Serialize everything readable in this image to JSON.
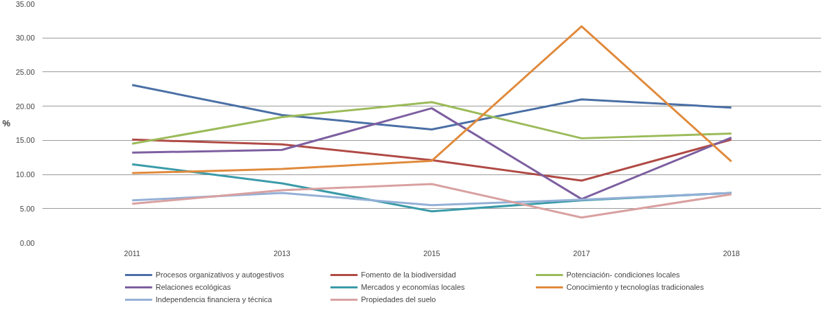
{
  "chart_data": {
    "type": "line",
    "ylabel": "%",
    "categories": [
      "2011",
      "2013",
      "2015",
      "2017",
      "2018"
    ],
    "ylim": [
      0,
      35
    ],
    "yticks": [
      {
        "value": 0,
        "label": "0.00"
      },
      {
        "value": 5,
        "label": "5.00"
      },
      {
        "value": 10,
        "label": "10.00"
      },
      {
        "value": 15,
        "label": "15.00"
      },
      {
        "value": 20,
        "label": "20.00"
      },
      {
        "value": 25,
        "label": "25.00"
      },
      {
        "value": 30,
        "label": "30.00"
      },
      {
        "value": 35,
        "label": "35.00"
      }
    ],
    "grid": "y",
    "legend": "bottom",
    "marker": "none",
    "line_style": "solid",
    "series": [
      {
        "name": "Procesos organizativos y autogestivos",
        "color": "#4a6fa5",
        "values": [
          23.1,
          18.7,
          16.6,
          21.0,
          19.8
        ]
      },
      {
        "name": "Fomento de la biodiversidad",
        "color": "#b04a45",
        "values": [
          15.1,
          14.4,
          12.1,
          9.1,
          15.1
        ]
      },
      {
        "name": "Potenciación- condiciones locales",
        "color": "#9bbb59",
        "values": [
          14.5,
          18.4,
          20.6,
          15.3,
          16.0
        ]
      },
      {
        "name": "Relaciones ecológicas",
        "color": "#7d5fa0",
        "values": [
          13.2,
          13.6,
          19.7,
          6.4,
          15.4
        ]
      },
      {
        "name": "Mercados y economías locales",
        "color": "#3a9ba8",
        "values": [
          11.5,
          8.7,
          4.6,
          6.2,
          7.3
        ]
      },
      {
        "name": "Conocimiento y tecnologías tradicionales",
        "color": "#e08a3c",
        "values": [
          10.2,
          10.8,
          12.0,
          31.7,
          11.9
        ]
      },
      {
        "name": "Independencia financiera y técnica",
        "color": "#94b0d6",
        "values": [
          6.2,
          7.3,
          5.5,
          6.3,
          7.3
        ]
      },
      {
        "name": "Propiedades del suelo",
        "color": "#d9a0a0",
        "values": [
          5.7,
          7.7,
          8.6,
          3.7,
          7.1
        ]
      }
    ]
  }
}
